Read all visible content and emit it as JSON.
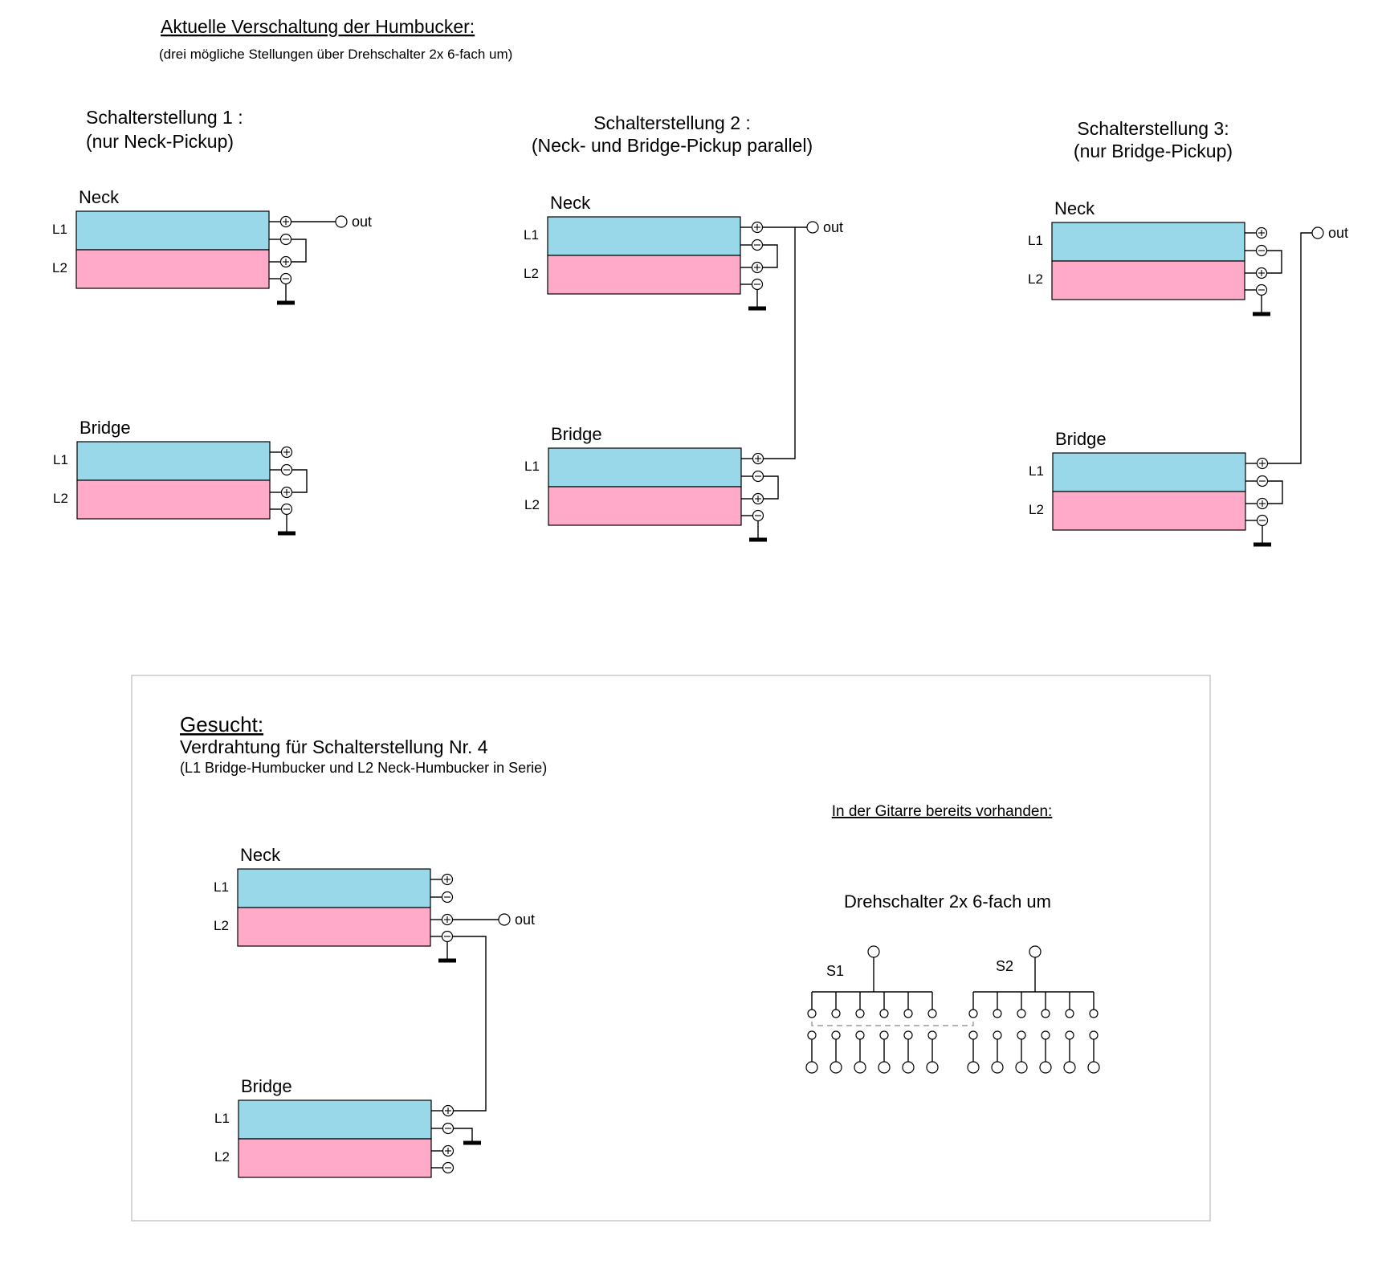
{
  "header": {
    "title": "Aktuelle Verschaltung der Humbucker:",
    "subtitle": "(drei mögliche Stellungen über Drehschalter 2x 6-fach um)"
  },
  "labels": {
    "neck": "Neck",
    "bridge": "Bridge",
    "coil1": "L1",
    "coil2": "L2",
    "out": "out"
  },
  "positions": [
    {
      "title": "Schalterstellung 1 :",
      "subtitle": "(nur Neck-Pickup)"
    },
    {
      "title": "Schalterstellung 2 :",
      "subtitle": "(Neck- und Bridge-Pickup parallel)"
    },
    {
      "title": "Schalterstellung 3:",
      "subtitle": "(nur Bridge-Pickup)"
    }
  ],
  "wanted": {
    "title": "Gesucht:",
    "subtitle": "Verdrahtung für Schalterstellung Nr. 4",
    "note": "(L1 Bridge-Humbucker und L2 Neck-Humbucker in Serie)",
    "existing_heading": "In der Gitarre bereits vorhanden:",
    "switch_title": "Drehschalter 2x 6-fach um",
    "switch_labels": [
      "S1",
      "S2"
    ]
  },
  "colors": {
    "coil_l1": "#99d8e8",
    "coil_l2": "#ffaac8",
    "frame": "#c8c8c8"
  }
}
